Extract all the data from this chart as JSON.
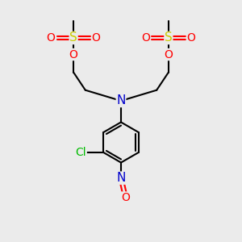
{
  "bg_color": "#ebebeb",
  "atom_colors": {
    "C": "#000000",
    "N": "#0000cc",
    "O": "#ff0000",
    "S": "#cccc00",
    "Cl": "#00bb00"
  },
  "bond_color": "#000000",
  "bond_width": 1.5,
  "font_size": 10
}
